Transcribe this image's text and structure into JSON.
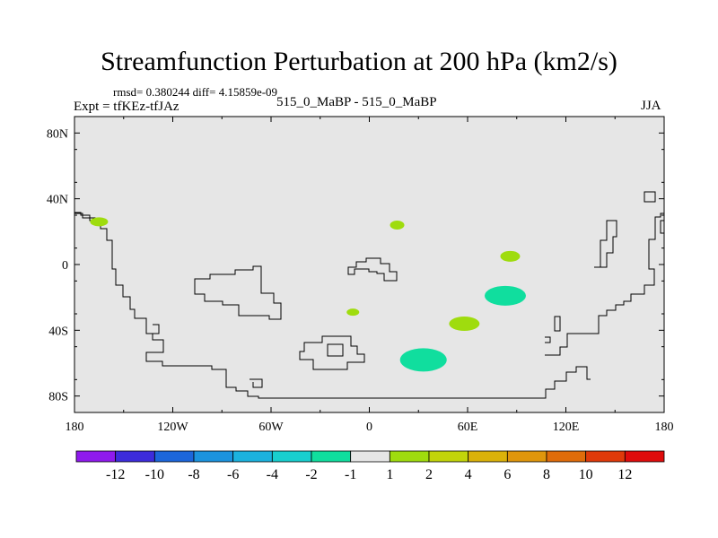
{
  "title": "Streamfunction Perturbation at 200 hPa (km2/s)",
  "stats": "rmsd= 0.380244 diff= 4.15859e-09",
  "experiment": "Expt = tfKEz-tfJAz",
  "center_label": "515_0_MaBP - 515_0_MaBP",
  "season": "JJA",
  "map": {
    "background_color": "#e6e6e6",
    "lat_ticks": [
      {
        "value": 80,
        "label": "80N"
      },
      {
        "value": 40,
        "label": "40N"
      },
      {
        "value": 0,
        "label": "0"
      },
      {
        "value": -40,
        "label": "40S"
      },
      {
        "value": -80,
        "label": "80S"
      }
    ],
    "lon_ticks": [
      {
        "value": -180,
        "label": "180"
      },
      {
        "value": -120,
        "label": "120W"
      },
      {
        "value": -60,
        "label": "60W"
      },
      {
        "value": 0,
        "label": "0"
      },
      {
        "value": 60,
        "label": "60E"
      },
      {
        "value": 120,
        "label": "120E"
      },
      {
        "value": 180,
        "label": "180"
      }
    ],
    "anomalies": [
      {
        "lon": -165,
        "lat": 26,
        "level": 1
      },
      {
        "lon": 17,
        "lat": 24,
        "level": 1
      },
      {
        "lon": 86,
        "lat": 5,
        "level": 1
      },
      {
        "lon": -10,
        "lat": -29,
        "level": 1
      },
      {
        "lon": 58,
        "lat": -36,
        "level": 1
      },
      {
        "lon": 83,
        "lat": -19,
        "level": -1
      },
      {
        "lon": 33,
        "lat": -58,
        "level": -1
      }
    ]
  },
  "colorbar": {
    "colors": [
      "#8f1aed",
      "#3d2cdc",
      "#1c66db",
      "#1b93de",
      "#1bb2de",
      "#18cece",
      "#10de9e",
      "#e6e6e6",
      "#9fdc0e",
      "#c2d40a",
      "#dbb20a",
      "#e0960c",
      "#e06c0a",
      "#e03a0a",
      "#df0c0c"
    ],
    "labels": [
      "-12",
      "-10",
      "-8",
      "-6",
      "-4",
      "-2",
      "-1",
      "1",
      "2",
      "4",
      "6",
      "8",
      "10",
      "12"
    ]
  }
}
